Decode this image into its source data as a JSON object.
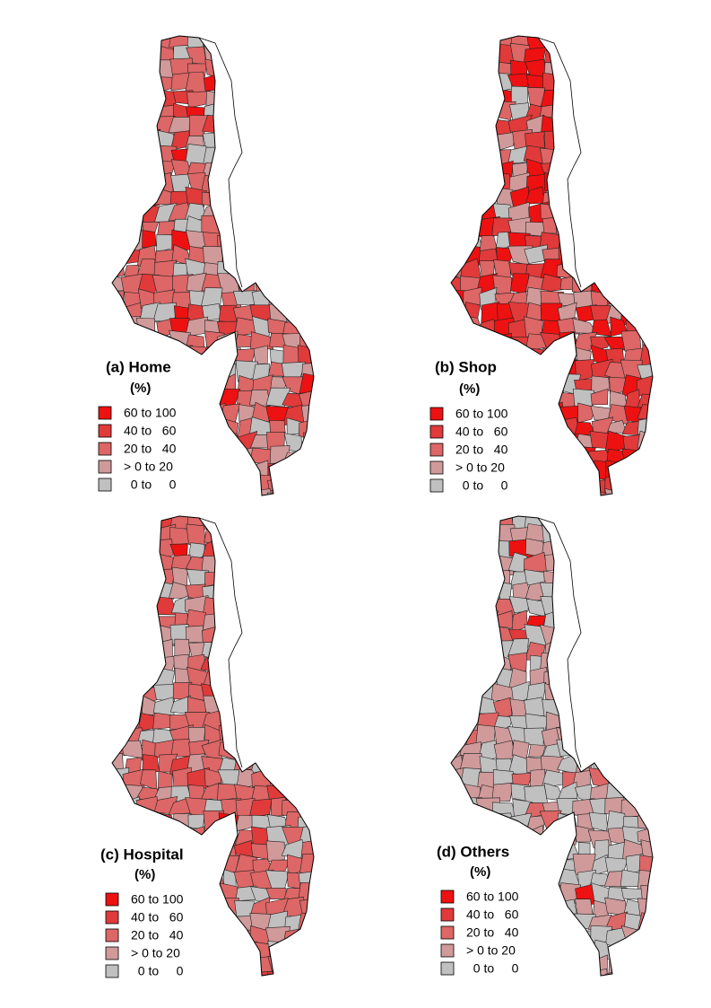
{
  "panels": [
    {
      "title": "(a) Home",
      "unit": "(%)"
    },
    {
      "title": "(b)  Shop",
      "unit": "(%)"
    },
    {
      "title": "(c)  Hospital",
      "unit": "(%)"
    },
    {
      "title": "(d)  Others",
      "unit": "(%)"
    }
  ],
  "legend": [
    {
      "label": "60 to 100",
      "color": "#ee1111"
    },
    {
      "label": "40 to   60",
      "color": "#e03a3a"
    },
    {
      "label": "20 to   40",
      "color": "#dd6666"
    },
    {
      "label": "> 0 to 20",
      "color": "#d09a9a"
    },
    {
      "label": "  0 to     0",
      "color": "#c0c0c0"
    }
  ]
}
